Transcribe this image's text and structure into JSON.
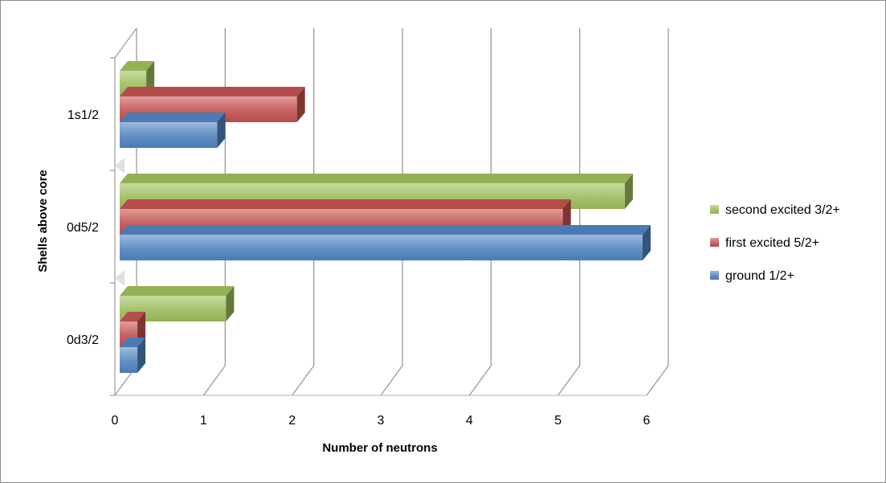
{
  "chart_data": {
    "type": "bar",
    "orientation": "horizontal",
    "style": "3d",
    "categories": [
      "0d3/2",
      "0d5/2",
      "1s1/2"
    ],
    "series": [
      {
        "name": "ground 1/2+",
        "values": [
          0.2,
          5.9,
          1.1
        ],
        "color": "#4f81bd"
      },
      {
        "name": "first excited 5/2+",
        "values": [
          0.2,
          5.0,
          2.0
        ],
        "color": "#c0504d"
      },
      {
        "name": "second excited 3/2+",
        "values": [
          1.2,
          5.7,
          0.3
        ],
        "color": "#9bbb59"
      }
    ],
    "xlabel": "Number of neutrons",
    "ylabel": "Shells above core",
    "xlim": [
      0,
      6
    ],
    "xticks": [
      "0",
      "1",
      "2",
      "3",
      "4",
      "5",
      "6"
    ],
    "grid": true,
    "legend_position": "right"
  }
}
